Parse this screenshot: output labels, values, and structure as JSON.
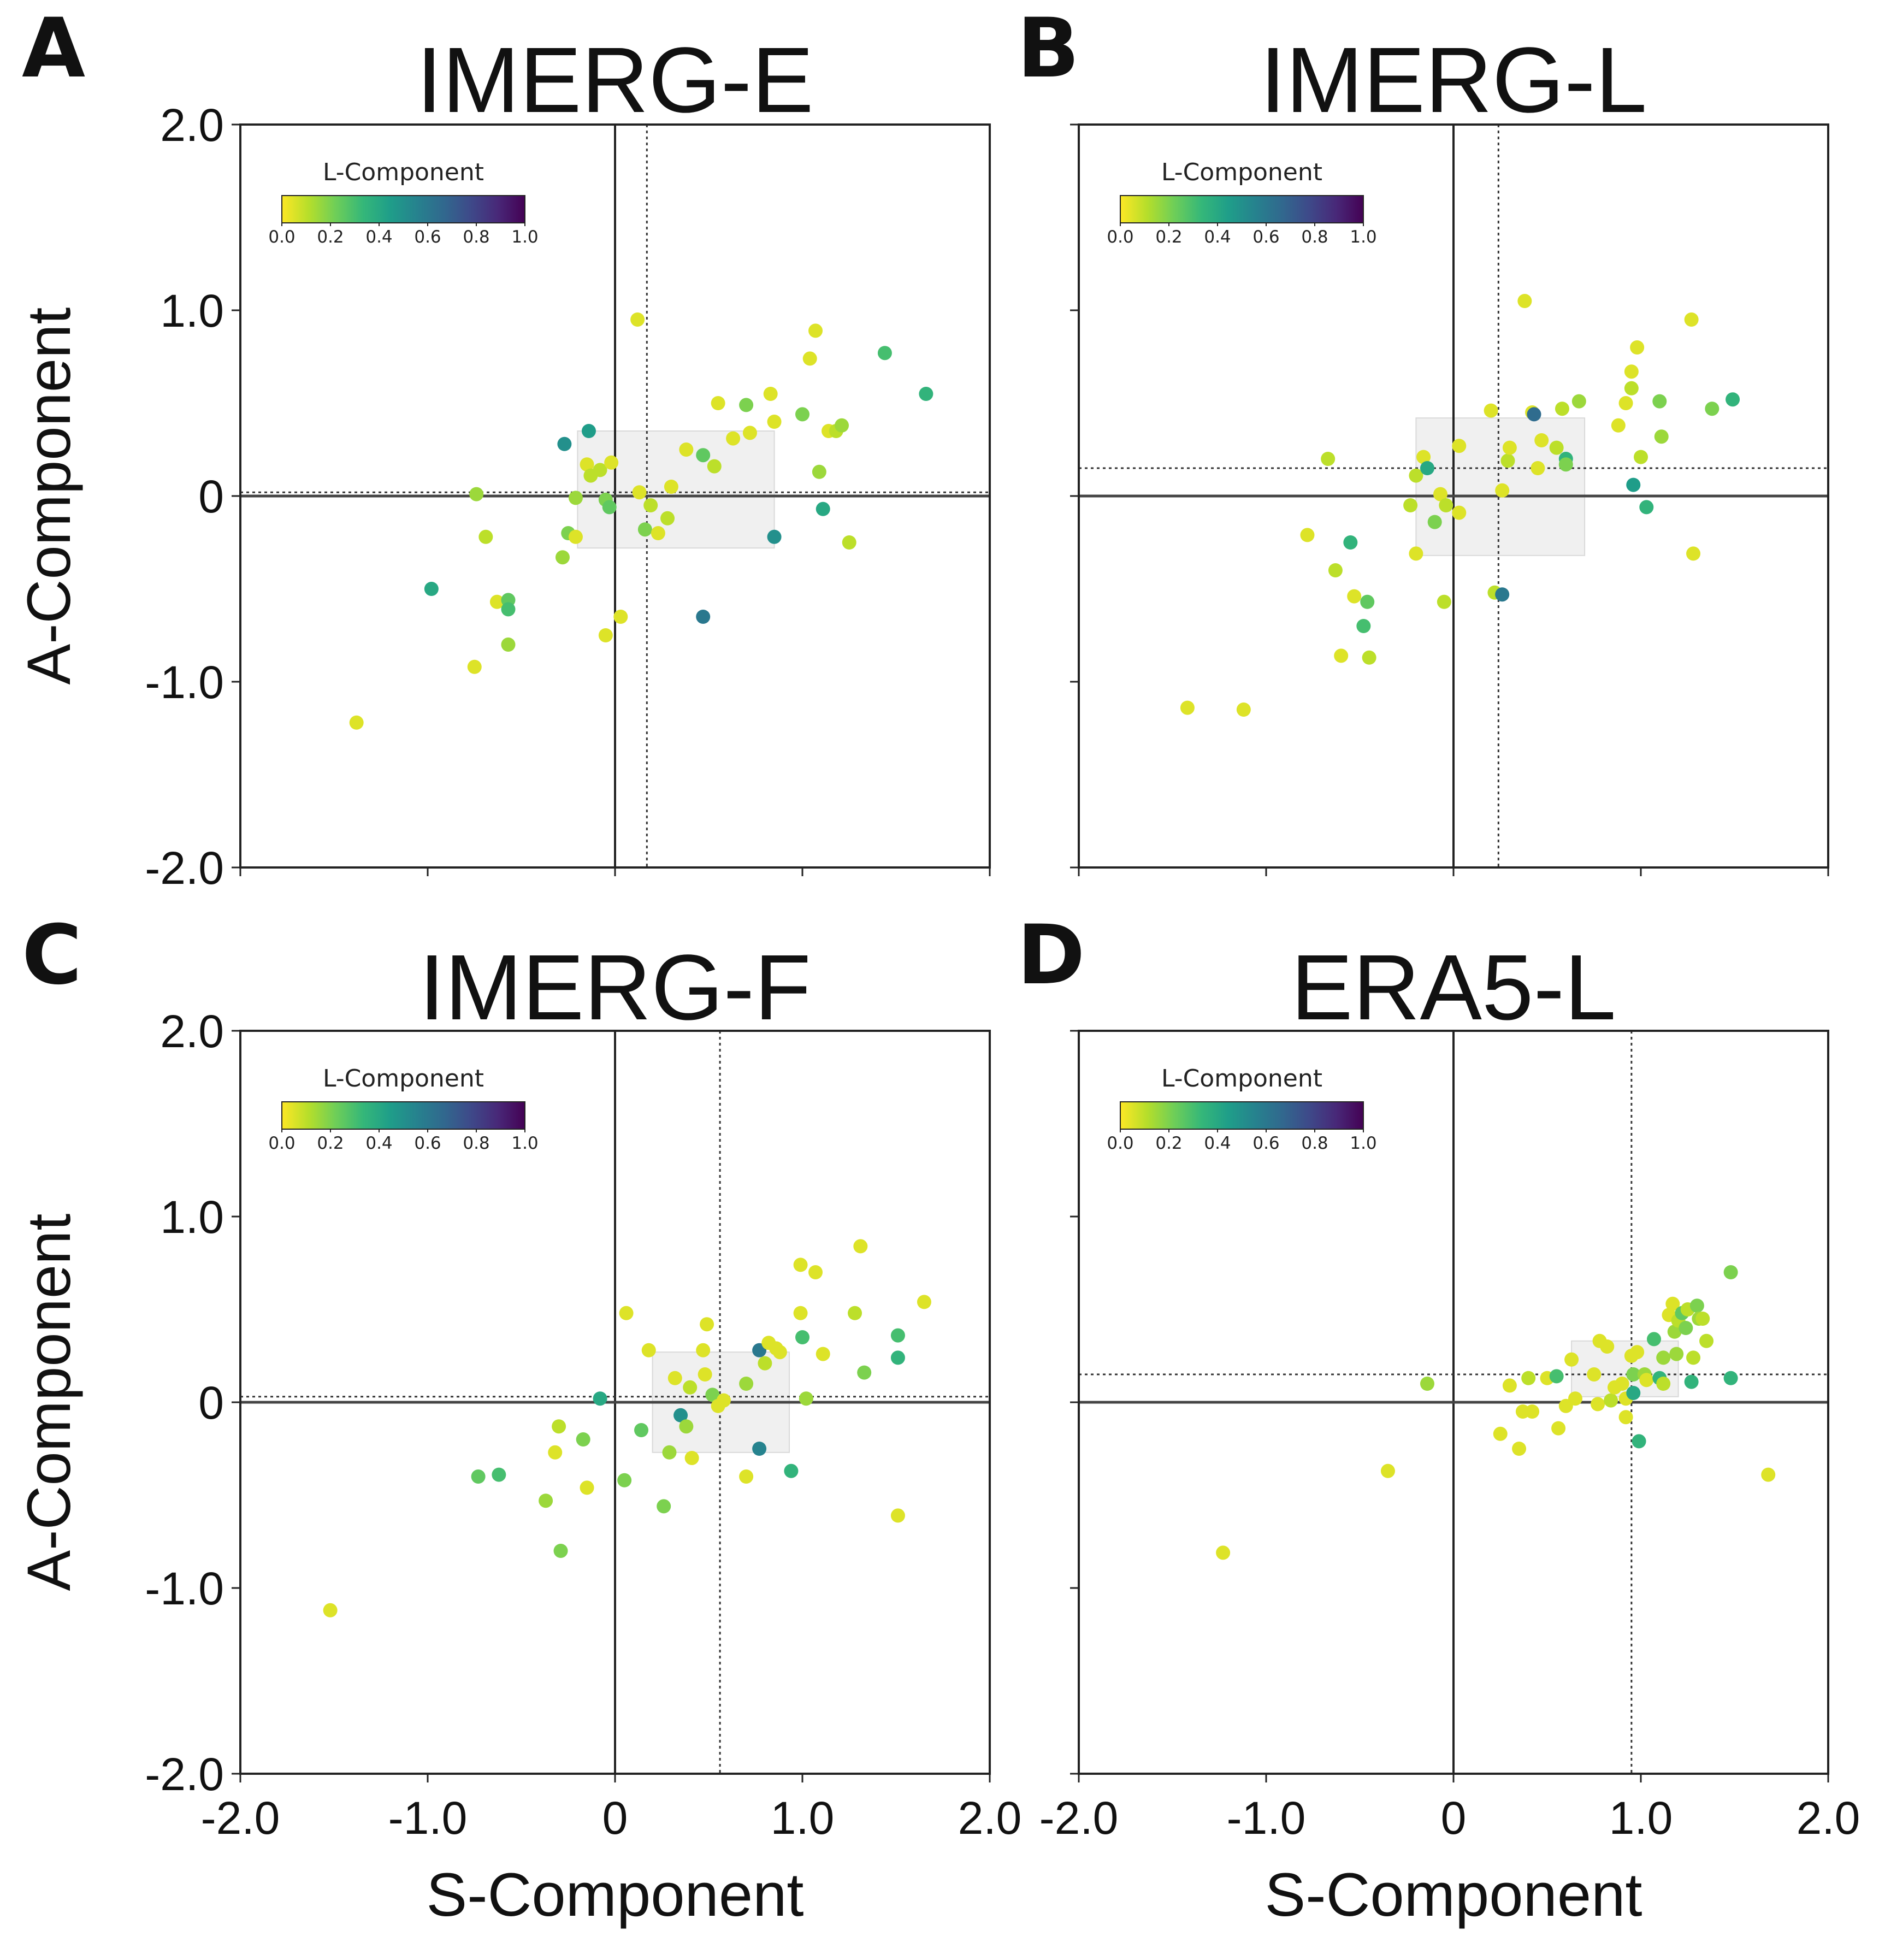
{
  "colorbar": {
    "label": "L-Component",
    "ticks": [
      "0.0",
      "0.2",
      "0.4",
      "0.6",
      "0.8",
      "1.0"
    ],
    "colors": [
      "#fde725",
      "#b5de2b",
      "#6ece58",
      "#35b779",
      "#1f9e89",
      "#26828e",
      "#31688e",
      "#3e4989",
      "#482878",
      "#440154"
    ]
  },
  "chart_data": [
    {
      "type": "scatter",
      "panel": "A",
      "title": "IMERG-E",
      "xlabel": "",
      "ylabel": "A-Component",
      "xlim": [
        -2,
        2
      ],
      "ylim": [
        -2,
        2
      ],
      "xticks": [],
      "yticks": [
        "2.0",
        "1.0",
        "0",
        "-1.0",
        "-2.0"
      ],
      "mean": {
        "x": 0.17,
        "y": 0.02
      },
      "iqr_box": {
        "x": [
          -0.2,
          0.85
        ],
        "y": [
          -0.28,
          0.35
        ]
      },
      "points": [
        {
          "x": -1.38,
          "y": -1.22,
          "l": 0.05
        },
        {
          "x": -0.75,
          "y": -0.92,
          "l": 0.05
        },
        {
          "x": -0.74,
          "y": 0.01,
          "l": 0.15
        },
        {
          "x": -0.69,
          "y": -0.22,
          "l": 0.1
        },
        {
          "x": -0.63,
          "y": -0.57,
          "l": 0.05
        },
        {
          "x": -0.57,
          "y": -0.8,
          "l": 0.15
        },
        {
          "x": -0.57,
          "y": -0.56,
          "l": 0.25
        },
        {
          "x": -0.57,
          "y": -0.61,
          "l": 0.3
        },
        {
          "x": -0.98,
          "y": -0.5,
          "l": 0.4
        },
        {
          "x": -0.27,
          "y": 0.28,
          "l": 0.5
        },
        {
          "x": -0.14,
          "y": 0.35,
          "l": 0.45
        },
        {
          "x": -0.15,
          "y": 0.17,
          "l": 0.05
        },
        {
          "x": -0.13,
          "y": 0.11,
          "l": 0.1
        },
        {
          "x": -0.08,
          "y": 0.14,
          "l": 0.1
        },
        {
          "x": -0.02,
          "y": 0.18,
          "l": 0.05
        },
        {
          "x": -0.21,
          "y": -0.01,
          "l": 0.15
        },
        {
          "x": -0.28,
          "y": -0.33,
          "l": 0.15
        },
        {
          "x": -0.25,
          "y": -0.2,
          "l": 0.2
        },
        {
          "x": -0.21,
          "y": -0.22,
          "l": 0.05
        },
        {
          "x": -0.05,
          "y": -0.02,
          "l": 0.2
        },
        {
          "x": -0.03,
          "y": -0.06,
          "l": 0.25
        },
        {
          "x": 0.03,
          "y": -0.65,
          "l": 0.05
        },
        {
          "x": -0.05,
          "y": -0.75,
          "l": 0.05
        },
        {
          "x": 0.12,
          "y": 0.95,
          "l": 0.05
        },
        {
          "x": 0.16,
          "y": -0.18,
          "l": 0.2
        },
        {
          "x": 0.19,
          "y": -0.05,
          "l": 0.1
        },
        {
          "x": 0.23,
          "y": -0.2,
          "l": 0.05
        },
        {
          "x": 0.28,
          "y": -0.12,
          "l": 0.1
        },
        {
          "x": 0.3,
          "y": 0.05,
          "l": 0.05
        },
        {
          "x": 0.13,
          "y": 0.02,
          "l": 0.05
        },
        {
          "x": 0.47,
          "y": -0.65,
          "l": 0.6
        },
        {
          "x": 0.38,
          "y": 0.25,
          "l": 0.05
        },
        {
          "x": 0.47,
          "y": 0.22,
          "l": 0.25
        },
        {
          "x": 0.53,
          "y": 0.16,
          "l": 0.1
        },
        {
          "x": 0.55,
          "y": 0.5,
          "l": 0.05
        },
        {
          "x": 0.63,
          "y": 0.31,
          "l": 0.05
        },
        {
          "x": 0.7,
          "y": 0.49,
          "l": 0.2
        },
        {
          "x": 0.72,
          "y": 0.34,
          "l": 0.05
        },
        {
          "x": 0.83,
          "y": 0.55,
          "l": 0.05
        },
        {
          "x": 0.85,
          "y": 0.4,
          "l": 0.05
        },
        {
          "x": 0.85,
          "y": -0.22,
          "l": 0.5
        },
        {
          "x": 1.0,
          "y": 0.44,
          "l": 0.2
        },
        {
          "x": 1.04,
          "y": 0.74,
          "l": 0.05
        },
        {
          "x": 1.07,
          "y": 0.89,
          "l": 0.05
        },
        {
          "x": 1.09,
          "y": 0.13,
          "l": 0.15
        },
        {
          "x": 1.11,
          "y": -0.07,
          "l": 0.4
        },
        {
          "x": 1.14,
          "y": 0.35,
          "l": 0.05
        },
        {
          "x": 1.18,
          "y": 0.35,
          "l": 0.1
        },
        {
          "x": 1.21,
          "y": 0.38,
          "l": 0.15
        },
        {
          "x": 1.25,
          "y": -0.25,
          "l": 0.1
        },
        {
          "x": 1.44,
          "y": 0.77,
          "l": 0.3
        },
        {
          "x": 1.66,
          "y": 0.55,
          "l": 0.35
        }
      ]
    },
    {
      "type": "scatter",
      "panel": "B",
      "title": "IMERG-L",
      "xlabel": "",
      "ylabel": "",
      "xlim": [
        -2,
        2
      ],
      "ylim": [
        -2,
        2
      ],
      "xticks": [],
      "yticks": [],
      "mean": {
        "x": 0.24,
        "y": 0.15
      },
      "iqr_box": {
        "x": [
          -0.2,
          0.7
        ],
        "y": [
          -0.32,
          0.42
        ]
      },
      "points": [
        {
          "x": -1.42,
          "y": -1.14,
          "l": 0.05
        },
        {
          "x": -1.12,
          "y": -1.15,
          "l": 0.05
        },
        {
          "x": -0.78,
          "y": -0.21,
          "l": 0.05
        },
        {
          "x": -0.67,
          "y": 0.2,
          "l": 0.1
        },
        {
          "x": -0.63,
          "y": -0.4,
          "l": 0.1
        },
        {
          "x": -0.6,
          "y": -0.86,
          "l": 0.05
        },
        {
          "x": -0.55,
          "y": -0.25,
          "l": 0.35
        },
        {
          "x": -0.53,
          "y": -0.54,
          "l": 0.05
        },
        {
          "x": -0.48,
          "y": -0.7,
          "l": 0.3
        },
        {
          "x": -0.46,
          "y": -0.57,
          "l": 0.25
        },
        {
          "x": -0.45,
          "y": -0.87,
          "l": 0.1
        },
        {
          "x": -0.2,
          "y": -0.31,
          "l": 0.05
        },
        {
          "x": -0.23,
          "y": -0.05,
          "l": 0.1
        },
        {
          "x": -0.2,
          "y": 0.11,
          "l": 0.1
        },
        {
          "x": -0.16,
          "y": 0.21,
          "l": 0.05
        },
        {
          "x": -0.14,
          "y": 0.15,
          "l": 0.4
        },
        {
          "x": -0.1,
          "y": -0.14,
          "l": 0.2
        },
        {
          "x": -0.07,
          "y": 0.01,
          "l": 0.05
        },
        {
          "x": -0.05,
          "y": -0.57,
          "l": 0.1
        },
        {
          "x": -0.04,
          "y": -0.05,
          "l": 0.1
        },
        {
          "x": 0.03,
          "y": -0.09,
          "l": 0.05
        },
        {
          "x": 0.03,
          "y": 0.27,
          "l": 0.05
        },
        {
          "x": 0.2,
          "y": 0.46,
          "l": 0.05
        },
        {
          "x": 0.22,
          "y": -0.52,
          "l": 0.1
        },
        {
          "x": 0.26,
          "y": 0.03,
          "l": 0.05
        },
        {
          "x": 0.26,
          "y": -0.53,
          "l": 0.6
        },
        {
          "x": 0.29,
          "y": 0.19,
          "l": 0.1
        },
        {
          "x": 0.3,
          "y": 0.26,
          "l": 0.05
        },
        {
          "x": 0.38,
          "y": 1.05,
          "l": 0.05
        },
        {
          "x": 0.42,
          "y": 0.45,
          "l": 0.05
        },
        {
          "x": 0.43,
          "y": 0.44,
          "l": 0.65
        },
        {
          "x": 0.45,
          "y": 0.15,
          "l": 0.05
        },
        {
          "x": 0.47,
          "y": 0.3,
          "l": 0.05
        },
        {
          "x": 0.55,
          "y": 0.26,
          "l": 0.1
        },
        {
          "x": 0.58,
          "y": 0.47,
          "l": 0.1
        },
        {
          "x": 0.6,
          "y": 0.2,
          "l": 0.35
        },
        {
          "x": 0.6,
          "y": 0.17,
          "l": 0.2
        },
        {
          "x": 0.67,
          "y": 0.51,
          "l": 0.15
        },
        {
          "x": 0.88,
          "y": 0.38,
          "l": 0.05
        },
        {
          "x": 0.92,
          "y": 0.5,
          "l": 0.05
        },
        {
          "x": 0.95,
          "y": 0.58,
          "l": 0.1
        },
        {
          "x": 0.95,
          "y": 0.67,
          "l": 0.05
        },
        {
          "x": 0.96,
          "y": 0.06,
          "l": 0.45
        },
        {
          "x": 1.0,
          "y": 0.21,
          "l": 0.1
        },
        {
          "x": 0.98,
          "y": 0.8,
          "l": 0.05
        },
        {
          "x": 1.03,
          "y": -0.06,
          "l": 0.35
        },
        {
          "x": 1.1,
          "y": 0.51,
          "l": 0.2
        },
        {
          "x": 1.11,
          "y": 0.32,
          "l": 0.15
        },
        {
          "x": 1.27,
          "y": 0.95,
          "l": 0.05
        },
        {
          "x": 1.28,
          "y": -0.31,
          "l": 0.05
        },
        {
          "x": 1.38,
          "y": 0.47,
          "l": 0.2
        },
        {
          "x": 1.49,
          "y": 0.52,
          "l": 0.35
        }
      ]
    },
    {
      "type": "scatter",
      "panel": "C",
      "title": "IMERG-F",
      "xlabel": "S-Component",
      "ylabel": "A-Component",
      "xlim": [
        -2,
        2
      ],
      "ylim": [
        -2,
        2
      ],
      "xticks": [
        "-2.0",
        "-1.0",
        "0",
        "1.0",
        "2.0"
      ],
      "yticks": [
        "2.0",
        "1.0",
        "0",
        "-1.0",
        "-2.0"
      ],
      "mean": {
        "x": 0.56,
        "y": 0.03
      },
      "iqr_box": {
        "x": [
          0.2,
          0.93
        ],
        "y": [
          -0.27,
          0.27
        ]
      },
      "points": [
        {
          "x": -1.52,
          "y": -1.12,
          "l": 0.05
        },
        {
          "x": -0.73,
          "y": -0.4,
          "l": 0.25
        },
        {
          "x": -0.62,
          "y": -0.39,
          "l": 0.3
        },
        {
          "x": -0.37,
          "y": -0.53,
          "l": 0.15
        },
        {
          "x": -0.32,
          "y": -0.27,
          "l": 0.05
        },
        {
          "x": -0.3,
          "y": -0.13,
          "l": 0.1
        },
        {
          "x": -0.29,
          "y": -0.8,
          "l": 0.2
        },
        {
          "x": -0.17,
          "y": -0.2,
          "l": 0.2
        },
        {
          "x": -0.15,
          "y": -0.46,
          "l": 0.05
        },
        {
          "x": -0.08,
          "y": 0.02,
          "l": 0.4
        },
        {
          "x": 0.06,
          "y": 0.48,
          "l": 0.05
        },
        {
          "x": 0.05,
          "y": -0.42,
          "l": 0.2
        },
        {
          "x": 0.14,
          "y": -0.15,
          "l": 0.25
        },
        {
          "x": 0.18,
          "y": 0.28,
          "l": 0.05
        },
        {
          "x": 0.26,
          "y": -0.56,
          "l": 0.2
        },
        {
          "x": 0.29,
          "y": -0.27,
          "l": 0.15
        },
        {
          "x": 0.32,
          "y": 0.13,
          "l": 0.05
        },
        {
          "x": 0.35,
          "y": -0.07,
          "l": 0.5
        },
        {
          "x": 0.38,
          "y": -0.13,
          "l": 0.15
        },
        {
          "x": 0.4,
          "y": 0.08,
          "l": 0.1
        },
        {
          "x": 0.41,
          "y": -0.3,
          "l": 0.05
        },
        {
          "x": 0.47,
          "y": 0.28,
          "l": 0.05
        },
        {
          "x": 0.49,
          "y": 0.42,
          "l": 0.05
        },
        {
          "x": 0.48,
          "y": 0.15,
          "l": 0.05
        },
        {
          "x": 0.52,
          "y": 0.04,
          "l": 0.2
        },
        {
          "x": 0.55,
          "y": -0.02,
          "l": 0.05
        },
        {
          "x": 0.58,
          "y": 0.01,
          "l": 0.05
        },
        {
          "x": 0.7,
          "y": 0.1,
          "l": 0.15
        },
        {
          "x": 0.7,
          "y": -0.4,
          "l": 0.05
        },
        {
          "x": 0.77,
          "y": 0.28,
          "l": 0.6
        },
        {
          "x": 0.77,
          "y": -0.25,
          "l": 0.55
        },
        {
          "x": 0.8,
          "y": 0.21,
          "l": 0.1
        },
        {
          "x": 0.82,
          "y": 0.32,
          "l": 0.05
        },
        {
          "x": 0.86,
          "y": 0.29,
          "l": 0.05
        },
        {
          "x": 0.88,
          "y": 0.27,
          "l": 0.05
        },
        {
          "x": 0.94,
          "y": -0.37,
          "l": 0.35
        },
        {
          "x": 0.99,
          "y": 0.74,
          "l": 0.05
        },
        {
          "x": 0.99,
          "y": 0.48,
          "l": 0.05
        },
        {
          "x": 1.0,
          "y": 0.35,
          "l": 0.3
        },
        {
          "x": 1.02,
          "y": 0.02,
          "l": 0.15
        },
        {
          "x": 1.07,
          "y": 0.7,
          "l": 0.05
        },
        {
          "x": 1.11,
          "y": 0.26,
          "l": 0.05
        },
        {
          "x": 1.28,
          "y": 0.48,
          "l": 0.1
        },
        {
          "x": 1.31,
          "y": 0.84,
          "l": 0.05
        },
        {
          "x": 1.33,
          "y": 0.16,
          "l": 0.2
        },
        {
          "x": 1.51,
          "y": 0.36,
          "l": 0.3
        },
        {
          "x": 1.51,
          "y": 0.24,
          "l": 0.35
        },
        {
          "x": 1.51,
          "y": -0.61,
          "l": 0.05
        },
        {
          "x": 1.65,
          "y": 0.54,
          "l": 0.05
        }
      ]
    },
    {
      "type": "scatter",
      "panel": "D",
      "title": "ERA5-L",
      "xlabel": "S-Component",
      "ylabel": "",
      "xlim": [
        -2,
        2
      ],
      "ylim": [
        -2,
        2
      ],
      "xticks": [
        "-2.0",
        "-1.0",
        "0",
        "1.0",
        "2.0"
      ],
      "yticks": [],
      "mean": {
        "x": 0.95,
        "y": 0.15
      },
      "iqr_box": {
        "x": [
          0.63,
          1.2
        ],
        "y": [
          0.03,
          0.33
        ]
      },
      "points": [
        {
          "x": -1.23,
          "y": -0.81,
          "l": 0.05
        },
        {
          "x": -0.35,
          "y": -0.37,
          "l": 0.05
        },
        {
          "x": -0.14,
          "y": 0.1,
          "l": 0.15
        },
        {
          "x": 0.25,
          "y": -0.17,
          "l": 0.05
        },
        {
          "x": 0.3,
          "y": 0.09,
          "l": 0.05
        },
        {
          "x": 0.35,
          "y": -0.25,
          "l": 0.05
        },
        {
          "x": 0.37,
          "y": -0.05,
          "l": 0.05
        },
        {
          "x": 0.42,
          "y": -0.05,
          "l": 0.05
        },
        {
          "x": 0.4,
          "y": 0.13,
          "l": 0.1
        },
        {
          "x": 0.5,
          "y": 0.13,
          "l": 0.05
        },
        {
          "x": 0.55,
          "y": 0.14,
          "l": 0.3
        },
        {
          "x": 0.56,
          "y": -0.14,
          "l": 0.05
        },
        {
          "x": 0.6,
          "y": -0.02,
          "l": 0.05
        },
        {
          "x": 0.63,
          "y": 0.23,
          "l": 0.05
        },
        {
          "x": 0.65,
          "y": 0.02,
          "l": 0.05
        },
        {
          "x": 0.75,
          "y": 0.15,
          "l": 0.05
        },
        {
          "x": 0.77,
          "y": -0.01,
          "l": 0.05
        },
        {
          "x": 0.78,
          "y": 0.33,
          "l": 0.05
        },
        {
          "x": 0.82,
          "y": 0.3,
          "l": 0.05
        },
        {
          "x": 0.84,
          "y": 0.01,
          "l": 0.1
        },
        {
          "x": 0.86,
          "y": 0.08,
          "l": 0.05
        },
        {
          "x": 0.9,
          "y": 0.1,
          "l": 0.05
        },
        {
          "x": 0.92,
          "y": 0.02,
          "l": 0.05
        },
        {
          "x": 0.92,
          "y": -0.08,
          "l": 0.05
        },
        {
          "x": 0.95,
          "y": 0.25,
          "l": 0.05
        },
        {
          "x": 0.96,
          "y": 0.15,
          "l": 0.2
        },
        {
          "x": 0.96,
          "y": 0.05,
          "l": 0.4
        },
        {
          "x": 0.98,
          "y": 0.27,
          "l": 0.05
        },
        {
          "x": 0.99,
          "y": -0.21,
          "l": 0.35
        },
        {
          "x": 1.02,
          "y": 0.15,
          "l": 0.15
        },
        {
          "x": 1.03,
          "y": 0.12,
          "l": 0.05
        },
        {
          "x": 1.07,
          "y": 0.34,
          "l": 0.3
        },
        {
          "x": 1.1,
          "y": 0.13,
          "l": 0.35
        },
        {
          "x": 1.12,
          "y": 0.24,
          "l": 0.15
        },
        {
          "x": 1.12,
          "y": 0.1,
          "l": 0.1
        },
        {
          "x": 1.15,
          "y": 0.47,
          "l": 0.05
        },
        {
          "x": 1.17,
          "y": 0.53,
          "l": 0.05
        },
        {
          "x": 1.18,
          "y": 0.38,
          "l": 0.15
        },
        {
          "x": 1.2,
          "y": 0.44,
          "l": 0.1
        },
        {
          "x": 1.19,
          "y": 0.26,
          "l": 0.15
        },
        {
          "x": 1.22,
          "y": 0.48,
          "l": 0.25
        },
        {
          "x": 1.24,
          "y": 0.4,
          "l": 0.2
        },
        {
          "x": 1.25,
          "y": 0.5,
          "l": 0.1
        },
        {
          "x": 1.27,
          "y": 0.11,
          "l": 0.35
        },
        {
          "x": 1.28,
          "y": 0.24,
          "l": 0.1
        },
        {
          "x": 1.3,
          "y": 0.52,
          "l": 0.2
        },
        {
          "x": 1.31,
          "y": 0.45,
          "l": 0.15
        },
        {
          "x": 1.33,
          "y": 0.45,
          "l": 0.1
        },
        {
          "x": 1.35,
          "y": 0.33,
          "l": 0.1
        },
        {
          "x": 1.48,
          "y": 0.7,
          "l": 0.2
        },
        {
          "x": 1.48,
          "y": 0.13,
          "l": 0.35
        },
        {
          "x": 1.68,
          "y": -0.39,
          "l": 0.05
        }
      ]
    }
  ]
}
